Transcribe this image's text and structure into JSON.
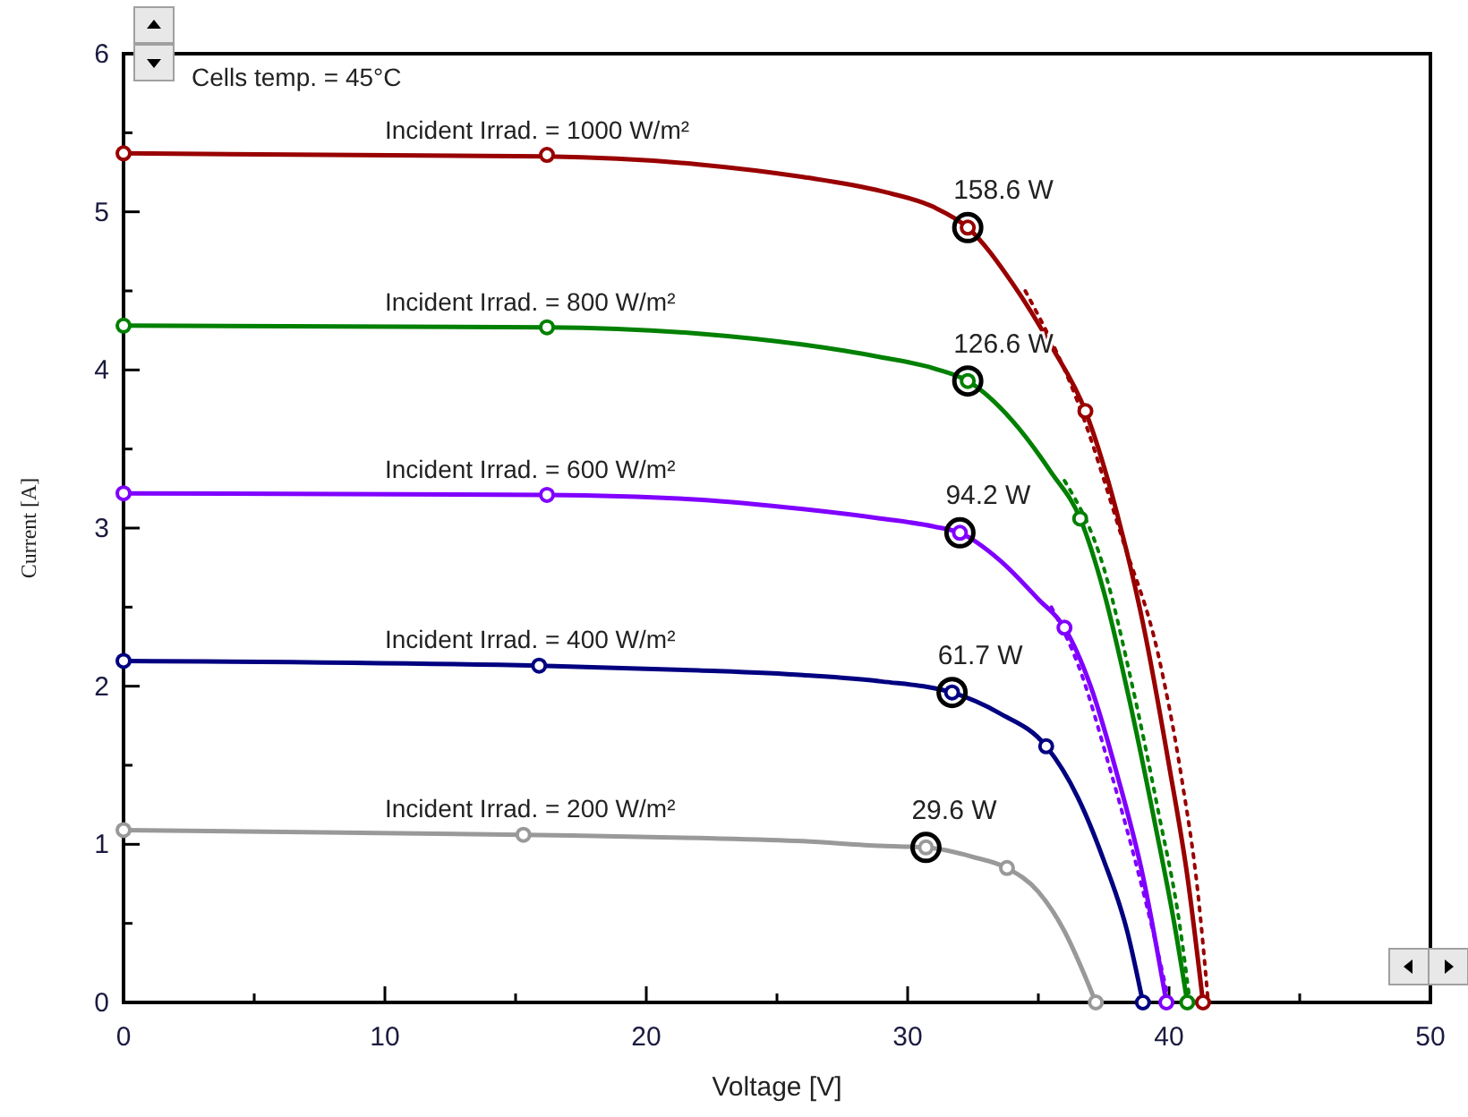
{
  "chart_data": {
    "type": "line",
    "xlabel": "Voltage [V]",
    "ylabel": "Current [A]",
    "xlim": [
      0,
      50
    ],
    "ylim": [
      0,
      6
    ],
    "xticks": [
      0,
      {
        "value": 5,
        "label": null
      },
      10,
      {
        "value": 15,
        "label": null
      },
      20,
      {
        "value": 25,
        "label": null
      },
      30,
      {
        "value": 35,
        "label": null
      },
      40,
      {
        "value": 45,
        "label": null
      },
      50
    ],
    "yticks": [
      0,
      {
        "value": 0.5,
        "label": null
      },
      1,
      {
        "value": 1.5,
        "label": null
      },
      2,
      {
        "value": 2.5,
        "label": null
      },
      3,
      {
        "value": 3.5,
        "label": null
      },
      4,
      {
        "value": 4.5,
        "label": null
      },
      5,
      {
        "value": 5.5,
        "label": null
      },
      6
    ],
    "grid": false,
    "series": [
      {
        "name": "Incident Irrad. = 1000 W/m²",
        "color": "#990000",
        "marker": "none",
        "line_style": "solid",
        "x": [
          0,
          16.2,
          22,
          26,
          29,
          31,
          32.3,
          34,
          35.5,
          36.8,
          38,
          39,
          40,
          40.7,
          41.3
        ],
        "values": [
          5.37,
          5.35,
          5.3,
          5.22,
          5.13,
          5.03,
          4.9,
          4.55,
          4.15,
          3.74,
          3.1,
          2.4,
          1.5,
          0.8,
          0
        ]
      },
      {
        "name": "Incident Irrad. = 800 W/m²",
        "color": "#008000",
        "marker": "none",
        "line_style": "solid",
        "x": [
          0,
          16.2,
          22,
          26,
          29,
          31,
          32.3,
          34,
          35.5,
          36.6,
          37.5,
          38.5,
          39.5,
          40.2,
          40.7
        ],
        "values": [
          4.28,
          4.27,
          4.23,
          4.16,
          4.08,
          4.01,
          3.93,
          3.68,
          3.35,
          3.06,
          2.6,
          1.9,
          1.1,
          0.5,
          0
        ]
      },
      {
        "name": "Incident Irrad. = 600 W/m²",
        "color": "#8000ff",
        "marker": "none",
        "line_style": "solid",
        "x": [
          0,
          16.2,
          22,
          26,
          29,
          31,
          32,
          33.5,
          35,
          36,
          37,
          38,
          39,
          39.9
        ],
        "values": [
          3.22,
          3.21,
          3.18,
          3.12,
          3.06,
          3.01,
          2.97,
          2.8,
          2.55,
          2.37,
          2,
          1.45,
          0.8,
          0
        ]
      },
      {
        "name": "Incident Irrad. = 400 W/m²",
        "color": "#000080",
        "marker": "none",
        "line_style": "solid",
        "x": [
          0,
          15.9,
          22,
          26,
          29,
          31.7,
          33.5,
          35.3,
          36.5,
          37.5,
          38.4,
          39
        ],
        "values": [
          2.16,
          2.13,
          2.1,
          2.07,
          2.03,
          1.96,
          1.83,
          1.62,
          1.3,
          0.9,
          0.45,
          0
        ]
      },
      {
        "name": "Incident Irrad. = 200 W/m²",
        "color": "#999999",
        "marker": "none",
        "line_style": "solid",
        "x": [
          0,
          15.3,
          22,
          26,
          29,
          30.7,
          32.5,
          33.8,
          35,
          36,
          36.7,
          37.2
        ],
        "values": [
          1.09,
          1.06,
          1.04,
          1.02,
          0.99,
          0.98,
          0.92,
          0.85,
          0.7,
          0.45,
          0.2,
          0
        ]
      },
      {
        "type": "line",
        "color": "#990000",
        "marker": "none",
        "line_style": "dotted",
        "x": [
          34.5,
          36.5,
          38.2,
          39.6,
          40.5,
          41.1,
          41.5
        ],
        "values": [
          4.5,
          3.8,
          2.94,
          2.19,
          1.4,
          0.7,
          0
        ]
      },
      {
        "type": "line",
        "color": "#008000",
        "marker": "none",
        "line_style": "dotted",
        "x": [
          36,
          37.5,
          38.6,
          39.6,
          40.4,
          40.8
        ],
        "values": [
          3.3,
          2.75,
          2,
          1.2,
          0.5,
          0
        ]
      },
      {
        "type": "line",
        "color": "#8000ff",
        "marker": "none",
        "line_style": "dotted",
        "x": [
          35.5,
          36.6,
          37.7,
          38.7,
          39.6,
          40
        ],
        "values": [
          2.5,
          2.1,
          1.5,
          0.9,
          0.3,
          0
        ]
      },
      {
        "type": "scatter",
        "color": "#990000",
        "marker": "circle",
        "x": [
          0,
          16.2,
          32.3,
          36.8,
          41.3
        ],
        "values": [
          5.37,
          5.36,
          4.9,
          3.74,
          0
        ]
      },
      {
        "type": "scatter",
        "color": "#008000",
        "marker": "circle",
        "x": [
          0,
          16.2,
          32.3,
          36.6,
          40.7
        ],
        "values": [
          4.28,
          4.27,
          3.93,
          3.06,
          0
        ]
      },
      {
        "type": "scatter",
        "color": "#8000ff",
        "marker": "circle",
        "x": [
          0,
          16.2,
          32,
          36,
          39.9
        ],
        "values": [
          3.22,
          3.21,
          2.97,
          2.37,
          0
        ]
      },
      {
        "type": "scatter",
        "color": "#000080",
        "marker": "circle",
        "x": [
          0,
          15.9,
          31.7,
          35.3,
          39
        ],
        "values": [
          2.16,
          2.13,
          1.96,
          1.62,
          0
        ]
      },
      {
        "type": "scatter",
        "color": "#999999",
        "marker": "circle",
        "x": [
          0,
          15.3,
          30.7,
          33.8,
          37.2
        ],
        "values": [
          1.09,
          1.06,
          0.98,
          0.85,
          0
        ]
      },
      {
        "type": "scatter",
        "color": "#000000",
        "marker": "circle",
        "sizes": [
          1,
          1,
          1,
          1,
          1
        ],
        "x": [
          32.3,
          32.3,
          32,
          31.7,
          30.7
        ],
        "values": [
          4.9,
          3.93,
          2.97,
          1.96,
          0.98
        ]
      }
    ],
    "annotations": [
      "Cells temp. = 45°C",
      {
        "text": "158.6 W",
        "x": 32.3,
        "y": 4.9
      },
      {
        "text": "126.6 W",
        "x": 32.3,
        "y": 3.93
      },
      {
        "text": "94.2 W",
        "x": 32,
        "y": 2.97
      },
      {
        "text": "61.7 W",
        "x": 31.7,
        "y": 1.96
      },
      {
        "text": "29.6 W",
        "x": 30.7,
        "y": 0.98
      }
    ]
  }
}
